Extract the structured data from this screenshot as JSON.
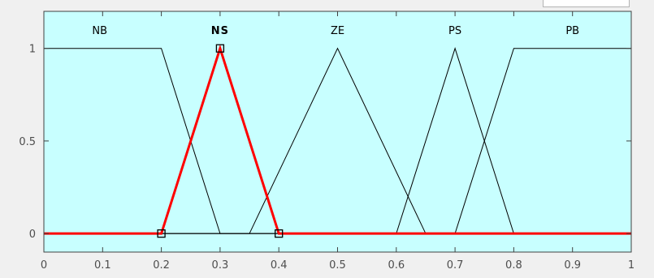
{
  "colors": {
    "window_bg": "#f0f0f0",
    "plot_bg": "#c8ffff",
    "axis": "#404040",
    "mf_line": "#000000",
    "selected": "#ff0000"
  },
  "chart_data": {
    "type": "line",
    "title": "",
    "xlabel": "",
    "ylabel": "",
    "xlim": [
      0,
      1
    ],
    "ylim": [
      -0.1,
      1.2
    ],
    "grid": false,
    "x_ticks": [
      "0",
      "0.1",
      "0.2",
      "0.3",
      "0.4",
      "0.5",
      "0.6",
      "0.7",
      "0.8",
      "0.9",
      "1"
    ],
    "y_ticks": [
      "0",
      "0.5",
      "1"
    ],
    "series": [
      {
        "name": "NB",
        "mf_type": "trapezoid",
        "selected": false,
        "x": [
          0,
          0.2,
          0.3,
          1
        ],
        "y": [
          1,
          1,
          0,
          0
        ]
      },
      {
        "name": "NS",
        "mf_type": "triangle",
        "selected": true,
        "x": [
          0,
          0.2,
          0.3,
          0.4,
          1
        ],
        "y": [
          0,
          0,
          1,
          0,
          0
        ]
      },
      {
        "name": "ZE",
        "mf_type": "triangle",
        "selected": false,
        "x": [
          0,
          0.35,
          0.5,
          0.65,
          1
        ],
        "y": [
          0,
          0,
          1,
          0,
          0
        ]
      },
      {
        "name": "PS",
        "mf_type": "triangle",
        "selected": false,
        "x": [
          0,
          0.6,
          0.7,
          0.8,
          1
        ],
        "y": [
          0,
          0,
          1,
          0,
          0
        ]
      },
      {
        "name": "PB",
        "mf_type": "trapezoid",
        "selected": false,
        "x": [
          0,
          0.7,
          0.8,
          1
        ],
        "y": [
          0,
          0,
          1,
          1
        ]
      }
    ],
    "control_points": [
      {
        "x": 0.2,
        "y": 0
      },
      {
        "x": 0.3,
        "y": 1
      },
      {
        "x": 0.4,
        "y": 0
      }
    ]
  }
}
